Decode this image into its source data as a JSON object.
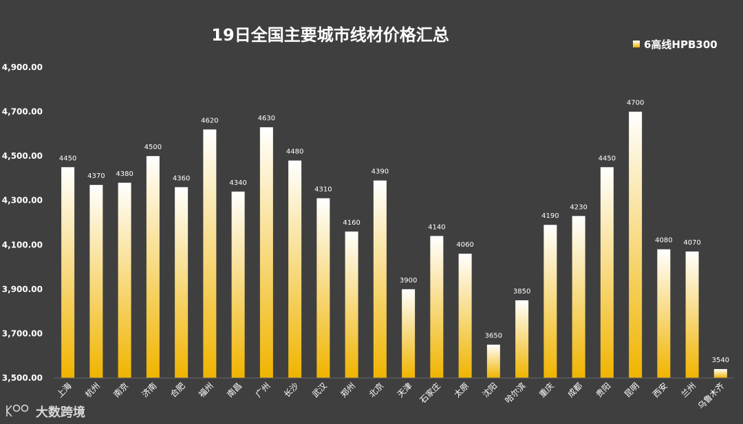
{
  "chart_data": {
    "type": "bar",
    "title": "19日全国主要城市线材价格汇总",
    "categories": [
      "上海",
      "杭州",
      "南京",
      "济南",
      "合肥",
      "福州",
      "南昌",
      "广州",
      "长沙",
      "武汉",
      "郑州",
      "北京",
      "天津",
      "石家庄",
      "太原",
      "沈阳",
      "哈尔滨",
      "重庆",
      "成都",
      "贵阳",
      "昆明",
      "西安",
      "兰州",
      "乌鲁木齐"
    ],
    "series": [
      {
        "name": "6高线HPB300",
        "values": [
          4450,
          4370,
          4380,
          4500,
          4360,
          4620,
          4340,
          4630,
          4480,
          4310,
          4160,
          4390,
          3900,
          4140,
          4060,
          3650,
          3850,
          4190,
          4230,
          4450,
          4700,
          4080,
          4070,
          3540
        ]
      }
    ],
    "ylim": [
      3500,
      4900
    ],
    "yticks": [
      "3,500.00",
      "3,700.00",
      "3,900.00",
      "4,100.00",
      "4,300.00",
      "4,500.00",
      "4,700.00",
      "4,900.00"
    ],
    "ytick_values": [
      3500,
      3700,
      3900,
      4100,
      4300,
      4500,
      4700,
      4900
    ],
    "legend_position": "top-right",
    "grid": false,
    "colors": {
      "background": "#3f3f3f",
      "bar_top": "#ffffff",
      "bar_bottom": "#f0b400",
      "text": "#ffffff"
    }
  },
  "watermark": {
    "text": "大数跨境"
  }
}
